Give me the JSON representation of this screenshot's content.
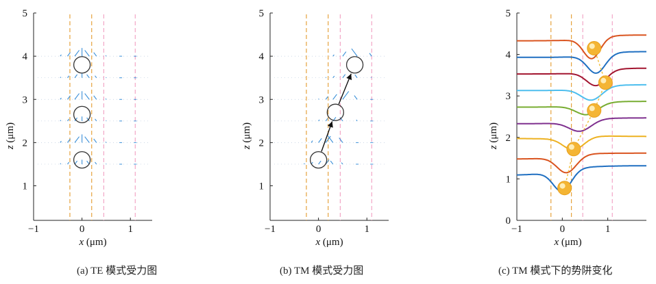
{
  "panels": [
    {
      "caption": "(a) TE 模式受力图",
      "xlabel_var": "x",
      "xlabel_unit": " (μm)",
      "ylabel_var": "z",
      "ylabel_unit": " (μm)",
      "xticks": [
        "−1",
        "0",
        "1"
      ],
      "yticks": [
        "1",
        "2",
        "3",
        "4",
        "5"
      ]
    },
    {
      "caption": "(b) TM 模式受力图",
      "xlabel_var": "x",
      "xlabel_unit": " (μm)",
      "ylabel_var": "z",
      "ylabel_unit": " (μm)",
      "xticks": [
        "−1",
        "0",
        "1"
      ],
      "yticks": [
        "1",
        "2",
        "3",
        "4",
        "5"
      ]
    },
    {
      "caption": "(c) TM 模式下的势阱变化",
      "xlabel_var": "x",
      "xlabel_unit": " (μm)",
      "ylabel_var": "z",
      "ylabel_unit": " (μm)",
      "xticks": [
        "−1",
        "0",
        "1"
      ],
      "yticks": [
        "0",
        "1",
        "2",
        "3",
        "4",
        "5"
      ]
    }
  ],
  "chart_data": [
    {
      "type": "scatter",
      "title": "(a) TE 模式受力图",
      "xlabel": "x (μm)",
      "ylabel": "z (μm)",
      "xlim": [
        -1,
        1.45
      ],
      "ylim": [
        0.2,
        5
      ],
      "vlines": [
        -0.25,
        0.2,
        0.45,
        1.1
      ],
      "vline_colors": [
        "#e6a23c",
        "#e6a23c",
        "#f2a6c6",
        "#f2a6c6"
      ],
      "arrow_rows_z": [
        1.5,
        2.0,
        2.5,
        3.0,
        3.5,
        4.0
      ],
      "arrow_color": "#3a8fd8",
      "particles": [
        {
          "x": 0.0,
          "z": 3.8
        },
        {
          "x": 0.0,
          "z": 2.65
        },
        {
          "x": 0.0,
          "z": 1.6
        }
      ]
    },
    {
      "type": "scatter",
      "title": "(b) TM 模式受力图",
      "xlabel": "x (μm)",
      "ylabel": "z (μm)",
      "xlim": [
        -1,
        1.45
      ],
      "ylim": [
        0.2,
        5
      ],
      "vlines": [
        -0.25,
        0.2,
        0.45,
        1.1
      ],
      "vline_colors": [
        "#e6a23c",
        "#e6a23c",
        "#f2a6c6",
        "#f2a6c6"
      ],
      "arrow_rows_z": [
        1.5,
        2.0,
        2.5,
        3.0,
        3.5,
        4.0
      ],
      "arrow_color": "#3a8fd8",
      "particles": [
        {
          "x": 0.0,
          "z": 1.6
        },
        {
          "x": 0.35,
          "z": 2.7
        },
        {
          "x": 0.75,
          "z": 3.8
        }
      ],
      "trajectory": [
        [
          0.0,
          1.6
        ],
        [
          0.35,
          2.7
        ],
        [
          0.75,
          3.8
        ]
      ]
    },
    {
      "type": "line",
      "title": "(c) TM 模式下的势阱变化",
      "xlabel": "x (μm)",
      "ylabel": "z (μm)",
      "xlim": [
        -1,
        1.85
      ],
      "ylim": [
        0,
        5
      ],
      "vlines": [
        -0.25,
        0.2,
        0.45,
        1.1
      ],
      "vline_colors": [
        "#e6a23c",
        "#e6a23c",
        "#f2a6c6",
        "#f2a6c6"
      ],
      "series": [
        {
          "color": "#1f6fc1",
          "offset": 1.2,
          "center": 0.0,
          "depth": 0.5,
          "width": 0.28,
          "skew": 0.05
        },
        {
          "color": "#d9531e",
          "offset": 1.55,
          "center": 0.1,
          "depth": 0.4,
          "width": 0.3,
          "skew": 0.0
        },
        {
          "color": "#edb120",
          "offset": 2.0,
          "center": 0.25,
          "depth": 0.3,
          "width": 0.32,
          "skew": -0.05
        },
        {
          "color": "#7e2f8e",
          "offset": 2.4,
          "center": 0.4,
          "depth": 0.25,
          "width": 0.34,
          "skew": 0.0
        },
        {
          "color": "#77ac30",
          "offset": 2.8,
          "center": 0.55,
          "depth": 0.25,
          "width": 0.34,
          "skew": 0.0
        },
        {
          "color": "#4dbeee",
          "offset": 3.2,
          "center": 0.65,
          "depth": 0.3,
          "width": 0.32,
          "skew": 0.0
        },
        {
          "color": "#a2142f",
          "offset": 3.6,
          "center": 0.75,
          "depth": 0.35,
          "width": 0.3,
          "skew": 0.0
        },
        {
          "color": "#1f6fc1",
          "offset": 4.0,
          "center": 0.75,
          "depth": 0.45,
          "width": 0.28,
          "skew": 0.0
        },
        {
          "color": "#d9531e",
          "offset": 4.4,
          "center": 0.65,
          "depth": 0.5,
          "width": 0.26,
          "skew": 0.0
        }
      ],
      "particles": [
        {
          "x": 0.05,
          "z": 0.78
        },
        {
          "x": 0.25,
          "z": 1.72
        },
        {
          "x": 0.7,
          "z": 2.65
        },
        {
          "x": 0.95,
          "z": 3.32
        },
        {
          "x": 0.7,
          "z": 4.15
        }
      ]
    }
  ]
}
